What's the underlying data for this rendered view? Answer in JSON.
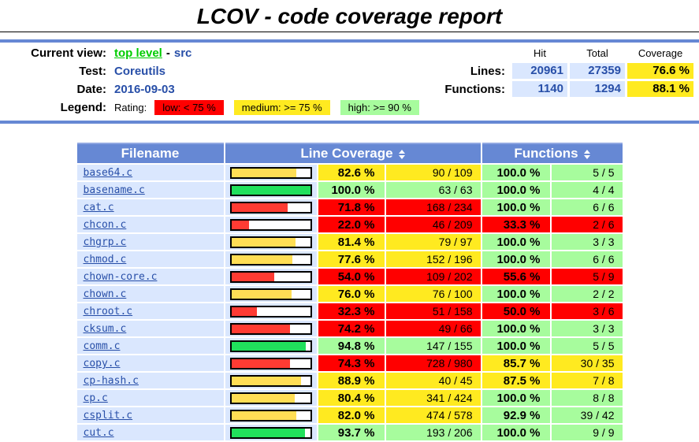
{
  "title": "LCOV - code coverage report",
  "header": {
    "current_view_label": "Current view:",
    "current_view_link": "top level",
    "current_view_separator": "-",
    "current_view_page": "src",
    "test_label": "Test:",
    "test_value": "Coreutils",
    "date_label": "Date:",
    "date_value": "2016-09-03",
    "legend_label": "Legend:",
    "rating_label": "Rating:",
    "legend": [
      {
        "text": "low: < 75 %",
        "rating": "lo",
        "color": "#FF0000"
      },
      {
        "text": "medium: >= 75 %",
        "rating": "med",
        "color": "#FFEA20"
      },
      {
        "text": "high: >= 90 %",
        "rating": "hi",
        "color": "#A7FC9D"
      }
    ],
    "summary": {
      "columns": [
        "Hit",
        "Total",
        "Coverage"
      ],
      "rows": [
        {
          "label": "Lines:",
          "hit": "20961",
          "total": "27359",
          "coverage": "76.6 %"
        },
        {
          "label": "Functions:",
          "hit": "1140",
          "total": "1294",
          "coverage": "88.1 %"
        }
      ]
    }
  },
  "table": {
    "filename_header": "Filename",
    "line_coverage_header": "Line Coverage",
    "functions_header": "Functions",
    "sort_icon": "sort-updown-icon",
    "rows": [
      {
        "file": "base64.c",
        "line_pct": 82.6,
        "line_pct_label": "82.6 %",
        "line_frac": "90 / 109",
        "line_rating": "med",
        "func_pct_label": "100.0 %",
        "func_frac": "5 / 5",
        "func_rating": "hi"
      },
      {
        "file": "basename.c",
        "line_pct": 100.0,
        "line_pct_label": "100.0 %",
        "line_frac": "63 / 63",
        "line_rating": "hi",
        "func_pct_label": "100.0 %",
        "func_frac": "4 / 4",
        "func_rating": "hi"
      },
      {
        "file": "cat.c",
        "line_pct": 71.8,
        "line_pct_label": "71.8 %",
        "line_frac": "168 / 234",
        "line_rating": "lo",
        "func_pct_label": "100.0 %",
        "func_frac": "6 / 6",
        "func_rating": "hi"
      },
      {
        "file": "chcon.c",
        "line_pct": 22.0,
        "line_pct_label": "22.0 %",
        "line_frac": "46 / 209",
        "line_rating": "lo",
        "func_pct_label": "33.3 %",
        "func_frac": "2 / 6",
        "func_rating": "lo"
      },
      {
        "file": "chgrp.c",
        "line_pct": 81.4,
        "line_pct_label": "81.4 %",
        "line_frac": "79 / 97",
        "line_rating": "med",
        "func_pct_label": "100.0 %",
        "func_frac": "3 / 3",
        "func_rating": "hi"
      },
      {
        "file": "chmod.c",
        "line_pct": 77.6,
        "line_pct_label": "77.6 %",
        "line_frac": "152 / 196",
        "line_rating": "med",
        "func_pct_label": "100.0 %",
        "func_frac": "6 / 6",
        "func_rating": "hi"
      },
      {
        "file": "chown-core.c",
        "line_pct": 54.0,
        "line_pct_label": "54.0 %",
        "line_frac": "109 / 202",
        "line_rating": "lo",
        "func_pct_label": "55.6 %",
        "func_frac": "5 / 9",
        "func_rating": "lo"
      },
      {
        "file": "chown.c",
        "line_pct": 76.0,
        "line_pct_label": "76.0 %",
        "line_frac": "76 / 100",
        "line_rating": "med",
        "func_pct_label": "100.0 %",
        "func_frac": "2 / 2",
        "func_rating": "hi"
      },
      {
        "file": "chroot.c",
        "line_pct": 32.3,
        "line_pct_label": "32.3 %",
        "line_frac": "51 / 158",
        "line_rating": "lo",
        "func_pct_label": "50.0 %",
        "func_frac": "3 / 6",
        "func_rating": "lo"
      },
      {
        "file": "cksum.c",
        "line_pct": 74.2,
        "line_pct_label": "74.2 %",
        "line_frac": "49 / 66",
        "line_rating": "lo",
        "func_pct_label": "100.0 %",
        "func_frac": "3 / 3",
        "func_rating": "hi"
      },
      {
        "file": "comm.c",
        "line_pct": 94.8,
        "line_pct_label": "94.8 %",
        "line_frac": "147 / 155",
        "line_rating": "hi",
        "func_pct_label": "100.0 %",
        "func_frac": "5 / 5",
        "func_rating": "hi"
      },
      {
        "file": "copy.c",
        "line_pct": 74.3,
        "line_pct_label": "74.3 %",
        "line_frac": "728 / 980",
        "line_rating": "lo",
        "func_pct_label": "85.7 %",
        "func_frac": "30 / 35",
        "func_rating": "med"
      },
      {
        "file": "cp-hash.c",
        "line_pct": 88.9,
        "line_pct_label": "88.9 %",
        "line_frac": "40 / 45",
        "line_rating": "med",
        "func_pct_label": "87.5 %",
        "func_frac": "7 / 8",
        "func_rating": "med"
      },
      {
        "file": "cp.c",
        "line_pct": 80.4,
        "line_pct_label": "80.4 %",
        "line_frac": "341 / 424",
        "line_rating": "med",
        "func_pct_label": "100.0 %",
        "func_frac": "8 / 8",
        "func_rating": "hi"
      },
      {
        "file": "csplit.c",
        "line_pct": 82.0,
        "line_pct_label": "82.0 %",
        "line_frac": "474 / 578",
        "line_rating": "med",
        "func_pct_label": "92.9 %",
        "func_frac": "39 / 42",
        "func_rating": "hi"
      },
      {
        "file": "cut.c",
        "line_pct": 93.7,
        "line_pct_label": "93.7 %",
        "line_frac": "193 / 206",
        "line_rating": "hi",
        "func_pct_label": "100.0 %",
        "func_frac": "9 / 9",
        "func_rating": "hi"
      }
    ]
  },
  "colors": {
    "table_head_blue": "#6688D4",
    "row_light_blue": "#DAE7FE",
    "link_blue": "#284FA8",
    "link_green": "#00CC00",
    "rating_low": "#FF0000",
    "rating_medium": "#FFEA20",
    "rating_high": "#A7FC9D",
    "bar_low": "#FF3B33",
    "bar_medium": "#FFDE55",
    "bar_high": "#20E05C",
    "ruler_blue": "#6688D4"
  }
}
